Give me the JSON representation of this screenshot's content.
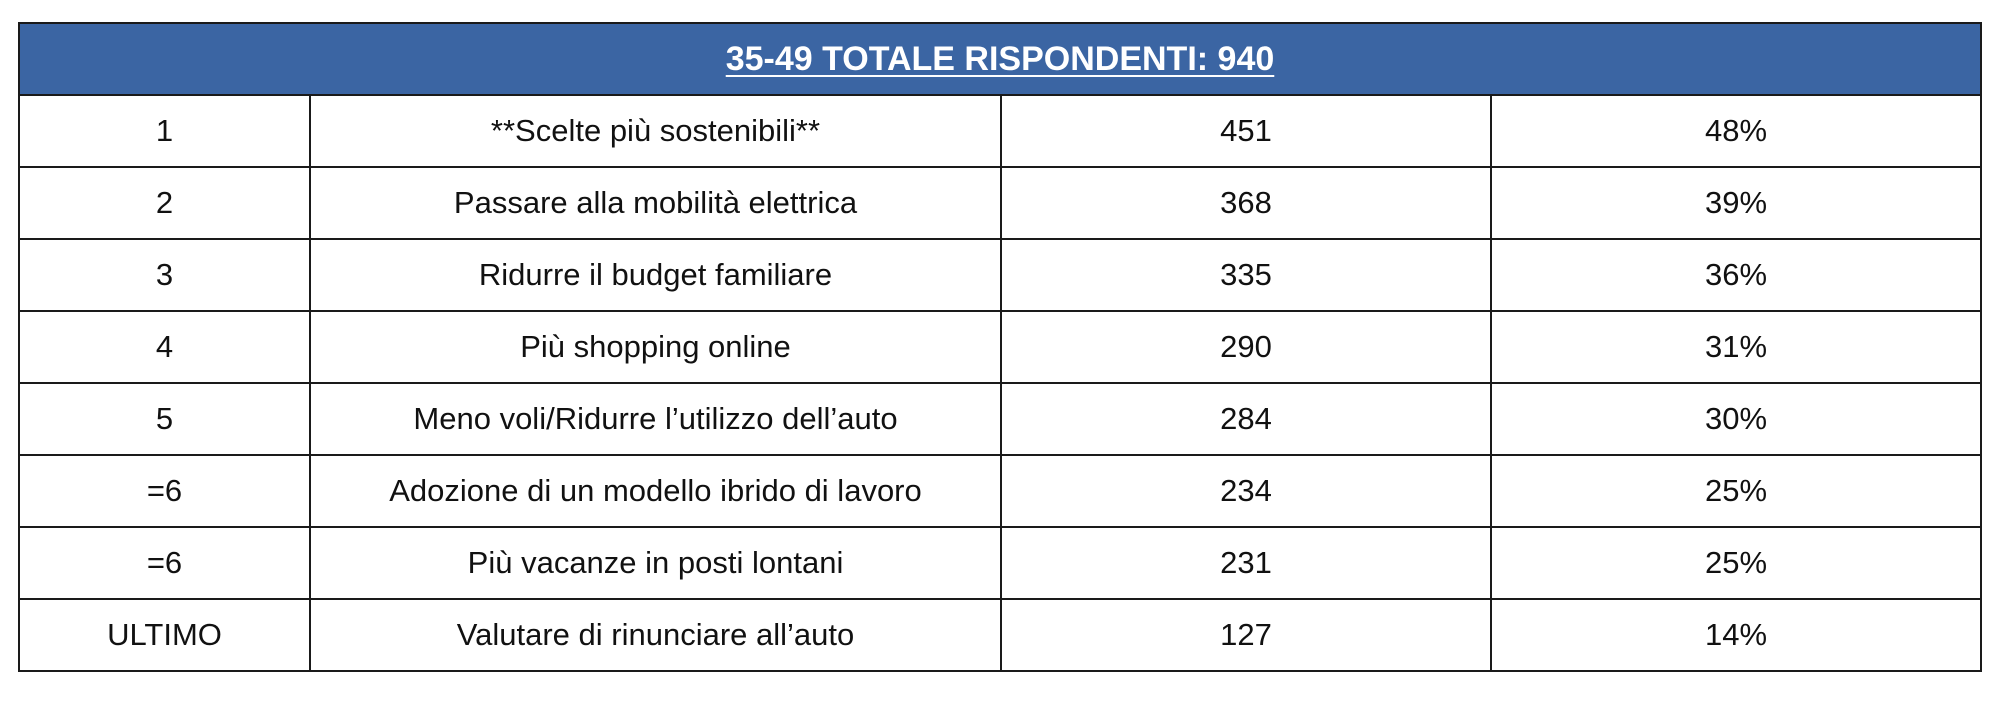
{
  "table": {
    "title": "35-49 TOTALE RISPONDENTI: 940",
    "rows": [
      {
        "rank": "1",
        "label": "**Scelte più sostenibili**",
        "count": "451",
        "percent": "48%"
      },
      {
        "rank": "2",
        "label": "Passare alla mobilità elettrica",
        "count": "368",
        "percent": "39%"
      },
      {
        "rank": "3",
        "label": "Ridurre il budget familiare",
        "count": "335",
        "percent": "36%"
      },
      {
        "rank": "4",
        "label": "Più shopping online",
        "count": "290",
        "percent": "31%"
      },
      {
        "rank": "5",
        "label": "Meno voli/Ridurre l’utilizzo dell’auto",
        "count": "284",
        "percent": "30%"
      },
      {
        "rank": "=6",
        "label": "Adozione di un modello ibrido di lavoro",
        "count": "234",
        "percent": "25%"
      },
      {
        "rank": "=6",
        "label": "Più vacanze in posti lontani",
        "count": "231",
        "percent": "25%"
      },
      {
        "rank": "ULTIMO",
        "label": "Valutare di rinunciare all’auto",
        "count": "127",
        "percent": "14%"
      }
    ]
  },
  "colors": {
    "header_background": "#3b65a3",
    "header_text": "#ffffff",
    "border": "#1a1a1a"
  }
}
